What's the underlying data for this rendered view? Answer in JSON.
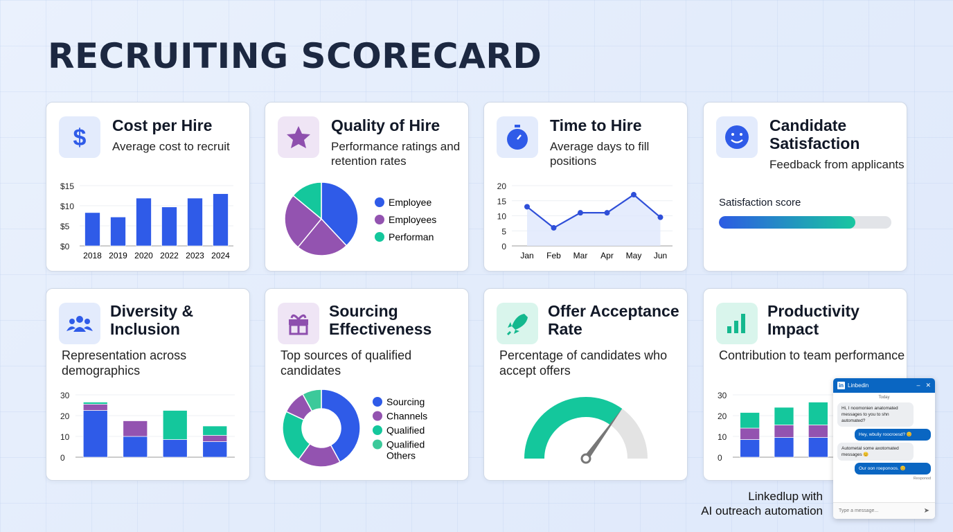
{
  "title": "RECRUITING SCORECARD",
  "colors": {
    "blue": "#2f5be8",
    "purple": "#9353b0",
    "green": "#14c79c",
    "green2": "#3cc99a",
    "grey": "#e2e2e2",
    "title": "#1c2841"
  },
  "cards": [
    {
      "title": "Cost per Hire",
      "subtitle": "Average cost to recruit",
      "icon": "dollar-icon"
    },
    {
      "title": "Quality of Hire",
      "subtitle": "Performance ratings and retention rates",
      "icon": "star-icon"
    },
    {
      "title": "Time to Hire",
      "subtitle": "Average days to fill positions",
      "icon": "stopwatch-icon"
    },
    {
      "title": "Candidate Satisfaction",
      "subtitle": "Feedback from applicants",
      "icon": "smiley-icon",
      "score_label": "Satisfaction score",
      "score_percent": 79
    },
    {
      "title": "Diversity & Inclusion",
      "subtitle": "Representation across demographics",
      "icon": "people-icon"
    },
    {
      "title": "Sourcing Effectiveness",
      "subtitle": "Top sources of qualified candidates",
      "icon": "gift-icon"
    },
    {
      "title": "Offer Acceptance Rate",
      "subtitle": "Percentage of candidates who accept offers",
      "icon": "rocket-icon"
    },
    {
      "title": "Productivity Impact",
      "subtitle": "Contribution to team performance",
      "icon": "bar-chart-icon"
    }
  ],
  "chart_data": [
    {
      "type": "bar",
      "categories": [
        "2018",
        "2019",
        "2020",
        "2022",
        "2023",
        "2024"
      ],
      "values": [
        8.3,
        7.2,
        11.9,
        9.7,
        11.9,
        13
      ],
      "yticks": [
        "$0",
        "$5",
        "$10",
        "$15"
      ],
      "ylim": [
        0,
        15
      ],
      "grid": true
    },
    {
      "type": "pie",
      "slices": [
        {
          "value": 38,
          "color": "blue"
        },
        {
          "value": 23,
          "color": "purple"
        },
        {
          "value": 25,
          "color": "purple"
        },
        {
          "value": 14,
          "color": "green"
        }
      ],
      "legend": [
        "Employee",
        "Employees",
        "Performan"
      ],
      "legend_colors": [
        "blue",
        "purple",
        "green"
      ],
      "legend_placement": "right"
    },
    {
      "type": "line",
      "categories": [
        "Jan",
        "Feb",
        "Mar",
        "Apr",
        "May",
        "Jun"
      ],
      "values": [
        13,
        6,
        11,
        11,
        17,
        9.5
      ],
      "yticks": [
        "0",
        "5",
        "10",
        "15",
        "20"
      ],
      "ylim": [
        0,
        20
      ],
      "grid": true,
      "area": true
    },
    {
      "type": "bar",
      "stacked": true,
      "values": [
        [
          22.5,
          3,
          1
        ],
        [
          10,
          7.5,
          0
        ],
        [
          8.5,
          0,
          14
        ],
        [
          7.5,
          3,
          4.5
        ]
      ],
      "stack_colors": [
        "blue",
        "purple",
        "green"
      ],
      "yticks": [
        "0",
        "10",
        "20",
        "30"
      ],
      "ylim": [
        0,
        30
      ],
      "grid": true
    },
    {
      "type": "pie",
      "donut": true,
      "slices": [
        {
          "value": 42,
          "color": "blue"
        },
        {
          "value": 18,
          "color": "purple"
        },
        {
          "value": 22,
          "color": "green"
        },
        {
          "value": 10,
          "color": "purple"
        },
        {
          "value": 8,
          "color": "green2"
        }
      ],
      "legend": [
        "Sourcing",
        "Channels",
        "Qualified",
        "Qualified Others"
      ],
      "legend_colors": [
        "blue",
        "purple",
        "green",
        "green2"
      ],
      "legend_placement": "right"
    },
    {
      "type": "gauge",
      "value_percent": 70
    },
    {
      "type": "bar",
      "stacked": true,
      "values": [
        [
          8.5,
          5.5,
          7.5
        ],
        [
          9.5,
          6,
          8.5
        ],
        [
          9.5,
          6,
          11
        ]
      ],
      "stack_colors": [
        "blue",
        "purple",
        "green"
      ],
      "yticks": [
        "0",
        "10",
        "20",
        "30"
      ],
      "ylim": [
        0,
        30
      ],
      "grid": true
    }
  ],
  "caption": {
    "line1": "Linkedlup with",
    "line2": "AI outreach automation"
  },
  "chat": {
    "app": "Linbedin",
    "day": "Today",
    "messages": [
      {
        "from": "them",
        "text": "Hi, I noomonien anatomated messages to you to shn automated?"
      },
      {
        "from": "me",
        "text": "Hey, wbuliy roocroesd? 😊"
      },
      {
        "from": "them",
        "text": "Autometal some axotomated messages 😊"
      },
      {
        "from": "me",
        "text": "Our oon roeponoos. 😊"
      }
    ],
    "status": "Responod",
    "placeholder": "Type a message..."
  }
}
